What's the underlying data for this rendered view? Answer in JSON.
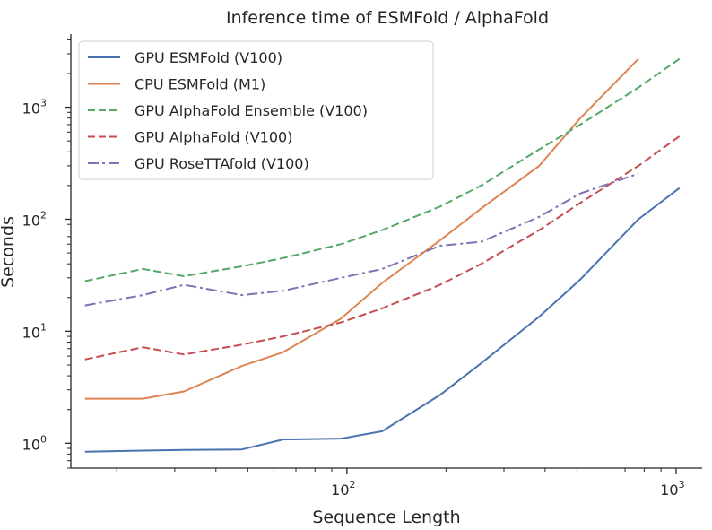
{
  "chart_data": {
    "type": "line",
    "title": "Inference time of ESMFold / AlphaFold",
    "xlabel": "Sequence Length",
    "ylabel": "Seconds",
    "xscale": "log",
    "yscale": "log",
    "xlim": [
      14.5,
      1200
    ],
    "ylim": [
      0.6,
      4500
    ],
    "grid": false,
    "legend_position": "top-left",
    "x_ticks": [
      {
        "value": 100,
        "base": "10",
        "exp": "2"
      },
      {
        "value": 1000,
        "base": "10",
        "exp": "3"
      }
    ],
    "y_ticks": [
      {
        "value": 1,
        "label": "10",
        "exp": "0"
      },
      {
        "value": 10,
        "label": "10",
        "exp": "1"
      },
      {
        "value": 100,
        "label": "10",
        "exp": "2"
      },
      {
        "value": 1000,
        "label": "10",
        "exp": "3"
      }
    ],
    "series": [
      {
        "name": "GPU ESMFold (V100)",
        "color": "#4c72b0",
        "dash": "solid",
        "x": [
          16,
          24,
          32,
          48,
          64,
          96,
          128,
          192,
          256,
          384,
          512,
          768,
          1024
        ],
        "y": [
          0.84,
          0.86,
          0.87,
          0.88,
          1.08,
          1.1,
          1.28,
          2.7,
          5.2,
          13.5,
          29,
          100,
          190
        ]
      },
      {
        "name": "CPU ESMFold (M1)",
        "color": "#dd8452",
        "dash": "solid",
        "x": [
          16,
          24,
          32,
          48,
          64,
          96,
          128,
          192,
          256,
          384,
          512,
          768
        ],
        "y": [
          2.5,
          2.5,
          2.9,
          4.9,
          6.5,
          13,
          27,
          65,
          125,
          300,
          800,
          2700
        ]
      },
      {
        "name": "GPU AlphaFold Ensemble (V100)",
        "color": "#55a868",
        "dash": "dashed",
        "x": [
          16,
          24,
          32,
          48,
          64,
          96,
          128,
          192,
          256,
          384,
          512,
          768,
          1024
        ],
        "y": [
          28,
          36,
          31,
          38,
          45,
          60,
          80,
          130,
          200,
          420,
          700,
          1500,
          2700
        ]
      },
      {
        "name": "GPU AlphaFold (V100)",
        "color": "#c44e52",
        "dash": "dashed",
        "x": [
          16,
          24,
          32,
          48,
          64,
          96,
          128,
          192,
          256,
          384,
          512,
          768,
          1024
        ],
        "y": [
          5.6,
          7.2,
          6.2,
          7.6,
          9,
          12,
          16,
          26,
          40,
          80,
          140,
          300,
          550
        ]
      },
      {
        "name": "GPU RoseTTAfold (V100)",
        "color": "#8172b3",
        "dash": "dashdot",
        "x": [
          16,
          24,
          32,
          48,
          64,
          96,
          128,
          192,
          256,
          384,
          512,
          768
        ],
        "y": [
          17,
          21,
          26,
          21,
          23,
          30,
          36,
          58,
          63,
          105,
          170,
          255
        ]
      }
    ]
  }
}
